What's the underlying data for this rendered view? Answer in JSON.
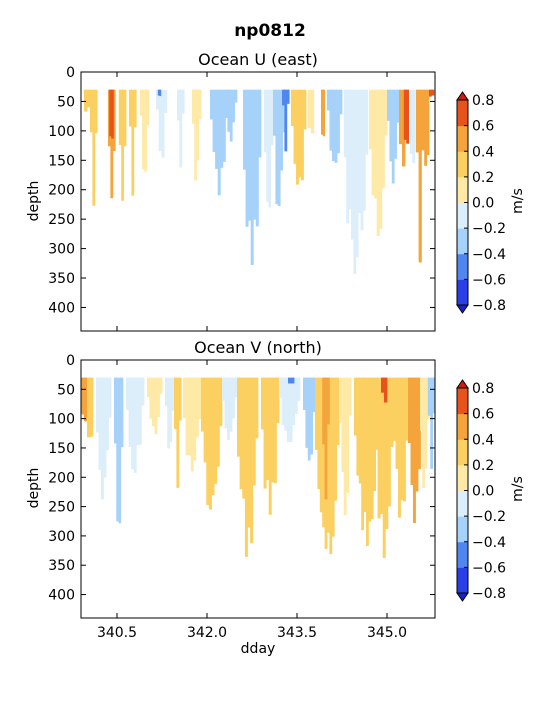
{
  "figure": {
    "title": "np0812"
  },
  "palette": {
    "levels": [
      -0.8,
      -0.6,
      -0.4,
      -0.2,
      0.0,
      0.2,
      0.4,
      0.6,
      0.8
    ],
    "colors": [
      "#2a3fe8",
      "#4f86f0",
      "#a6d2fa",
      "#ddeefb",
      "#fffbe0",
      "#fee9a6",
      "#fbd060",
      "#f4a43a",
      "#e8531c"
    ],
    "under_color": "#1a22c0",
    "over_color": "#c81e10"
  },
  "chart_data": [
    {
      "type": "heatmap",
      "title": "Ocean U (east)",
      "xlabel": "",
      "ylabel": "depth",
      "xlim": [
        339.9,
        345.8
      ],
      "ylim": [
        440,
        0
      ],
      "x_ticks": [
        340.5,
        342.0,
        343.5,
        345.0
      ],
      "y_ticks": [
        0,
        50,
        100,
        150,
        200,
        250,
        300,
        350,
        400
      ],
      "y_tick_labels": [
        "0",
        "50",
        "100",
        "150",
        "200",
        "250",
        "300",
        "350",
        "400"
      ],
      "data_top_depth": 30,
      "colorbar": {
        "label": "m/s",
        "ticks": [
          0.8,
          0.6,
          0.4,
          0.2,
          0.0,
          -0.2,
          -0.4,
          -0.6,
          -0.8
        ],
        "tick_labels": [
          "0.8",
          "0.6",
          "0.4",
          "0.2",
          "0.0",
          "−0.2",
          "−0.4",
          "−0.6",
          "−0.8"
        ]
      },
      "features": [
        {
          "x": 339.95,
          "w": 0.1,
          "bottom": 150,
          "v": 0.3
        },
        {
          "x": 340.05,
          "w": 0.12,
          "bottom": 230,
          "v": 0.25
        },
        {
          "x": 340.35,
          "w": 0.12,
          "bottom": 280,
          "v": 0.55
        },
        {
          "x": 340.37,
          "w": 0.07,
          "bottom": 240,
          "v": 0.7
        },
        {
          "x": 340.53,
          "w": 0.12,
          "bottom": 270,
          "v": 0.3
        },
        {
          "x": 340.7,
          "w": 0.12,
          "bottom": 240,
          "v": 0.3
        },
        {
          "x": 340.88,
          "w": 0.15,
          "bottom": 190,
          "v": 0.15
        },
        {
          "x": 341.15,
          "w": 0.18,
          "bottom": 170,
          "v": -0.2
        },
        {
          "x": 341.18,
          "w": 0.05,
          "bottom": 100,
          "v": -0.45
        },
        {
          "x": 341.5,
          "w": 0.12,
          "bottom": 170,
          "v": -0.15
        },
        {
          "x": 341.75,
          "w": 0.15,
          "bottom": 210,
          "v": 0.1
        },
        {
          "x": 342.05,
          "w": 0.3,
          "bottom": 200,
          "v": -0.3
        },
        {
          "x": 342.3,
          "w": 0.2,
          "bottom": 120,
          "v": -0.4
        },
        {
          "x": 342.6,
          "w": 0.3,
          "bottom": 350,
          "v": -0.3
        },
        {
          "x": 342.95,
          "w": 0.15,
          "bottom": 300,
          "v": -0.2
        },
        {
          "x": 343.1,
          "w": 0.2,
          "bottom": 260,
          "v": -0.35
        },
        {
          "x": 343.25,
          "w": 0.12,
          "bottom": 150,
          "v": -0.45
        },
        {
          "x": 343.4,
          "w": 0.25,
          "bottom": 230,
          "v": 0.3
        },
        {
          "x": 343.68,
          "w": 0.1,
          "bottom": 220,
          "v": 0.15
        },
        {
          "x": 343.9,
          "w": 0.06,
          "bottom": 240,
          "v": 0.55
        },
        {
          "x": 344.0,
          "w": 0.25,
          "bottom": 180,
          "v": -0.3
        },
        {
          "x": 344.28,
          "w": 0.4,
          "bottom": 340,
          "v": -0.15
        },
        {
          "x": 344.7,
          "w": 0.3,
          "bottom": 280,
          "v": 0.1
        },
        {
          "x": 345.0,
          "w": 0.2,
          "bottom": 190,
          "v": -0.3
        },
        {
          "x": 345.2,
          "w": 0.1,
          "bottom": 330,
          "v": 0.45
        },
        {
          "x": 345.28,
          "w": 0.08,
          "bottom": 310,
          "v": 0.65
        },
        {
          "x": 345.38,
          "w": 0.08,
          "bottom": 330,
          "v": -0.15
        },
        {
          "x": 345.48,
          "w": 0.14,
          "bottom": 340,
          "v": 0.45
        },
        {
          "x": 345.62,
          "w": 0.08,
          "bottom": 340,
          "v": 0.55
        },
        {
          "x": 345.7,
          "w": 0.08,
          "bottom": 100,
          "v": 0.7
        }
      ]
    },
    {
      "type": "heatmap",
      "title": "Ocean V (north)",
      "xlabel": "dday",
      "ylabel": "depth",
      "xlim": [
        339.9,
        345.8
      ],
      "ylim": [
        440,
        0
      ],
      "x_ticks": [
        340.5,
        342.0,
        343.5,
        345.0
      ],
      "x_tick_labels": [
        "340.5",
        "342.0",
        "343.5",
        "345.0"
      ],
      "y_ticks": [
        0,
        50,
        100,
        150,
        200,
        250,
        300,
        350,
        400
      ],
      "y_tick_labels": [
        "0",
        "50",
        "100",
        "150",
        "200",
        "250",
        "300",
        "350",
        "400"
      ],
      "data_top_depth": 30,
      "colorbar": {
        "label": "m/s",
        "ticks": [
          0.8,
          0.6,
          0.4,
          0.2,
          0.0,
          -0.2,
          -0.4,
          -0.6,
          -0.8
        ],
        "tick_labels": [
          "0.8",
          "0.6",
          "0.4",
          "0.2",
          "0.0",
          "−0.2",
          "−0.4",
          "−0.6",
          "−0.8"
        ]
      },
      "features": [
        {
          "x": 339.9,
          "w": 0.1,
          "bottom": 230,
          "v": 0.4
        },
        {
          "x": 340.0,
          "w": 0.1,
          "bottom": 280,
          "v": 0.2
        },
        {
          "x": 340.15,
          "w": 0.25,
          "bottom": 250,
          "v": -0.15
        },
        {
          "x": 340.45,
          "w": 0.15,
          "bottom": 330,
          "v": -0.3
        },
        {
          "x": 340.65,
          "w": 0.3,
          "bottom": 200,
          "v": -0.15
        },
        {
          "x": 341.0,
          "w": 0.25,
          "bottom": 140,
          "v": 0.1
        },
        {
          "x": 341.3,
          "w": 0.15,
          "bottom": 200,
          "v": -0.2
        },
        {
          "x": 341.45,
          "w": 0.12,
          "bottom": 240,
          "v": 0.3
        },
        {
          "x": 341.6,
          "w": 0.3,
          "bottom": 210,
          "v": 0.15
        },
        {
          "x": 341.9,
          "w": 0.35,
          "bottom": 300,
          "v": 0.3
        },
        {
          "x": 342.25,
          "w": 0.25,
          "bottom": 150,
          "v": -0.15
        },
        {
          "x": 342.5,
          "w": 0.35,
          "bottom": 340,
          "v": 0.3
        },
        {
          "x": 342.9,
          "w": 0.3,
          "bottom": 270,
          "v": 0.25
        },
        {
          "x": 343.2,
          "w": 0.35,
          "bottom": 150,
          "v": -0.2
        },
        {
          "x": 343.35,
          "w": 0.1,
          "bottom": 70,
          "v": -0.5
        },
        {
          "x": 343.6,
          "w": 0.2,
          "bottom": 200,
          "v": -0.3
        },
        {
          "x": 343.8,
          "w": 0.4,
          "bottom": 350,
          "v": 0.3
        },
        {
          "x": 343.92,
          "w": 0.12,
          "bottom": 300,
          "v": 0.5
        },
        {
          "x": 344.2,
          "w": 0.2,
          "bottom": 260,
          "v": 0.15
        },
        {
          "x": 344.45,
          "w": 0.4,
          "bottom": 310,
          "v": 0.3
        },
        {
          "x": 344.8,
          "w": 0.3,
          "bottom": 340,
          "v": 0.3
        },
        {
          "x": 344.9,
          "w": 0.1,
          "bottom": 150,
          "v": 0.6
        },
        {
          "x": 345.1,
          "w": 0.25,
          "bottom": 300,
          "v": 0.3
        },
        {
          "x": 345.35,
          "w": 0.25,
          "bottom": 290,
          "v": 0.4
        },
        {
          "x": 345.55,
          "w": 0.15,
          "bottom": 250,
          "v": 0.15
        },
        {
          "x": 345.68,
          "w": 0.12,
          "bottom": 200,
          "v": -0.3
        }
      ]
    }
  ]
}
